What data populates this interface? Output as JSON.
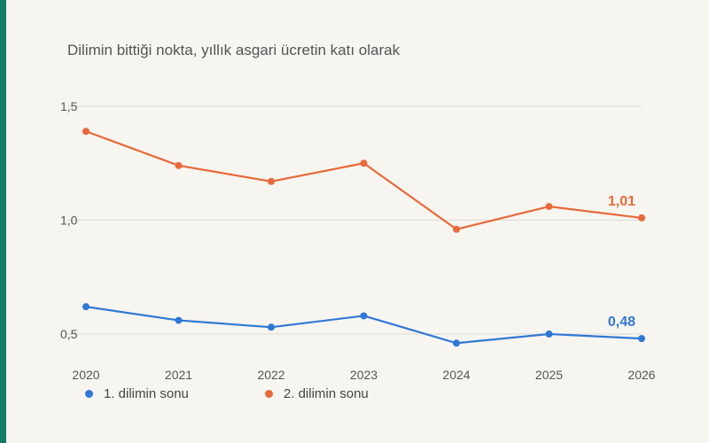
{
  "colors": {
    "background": "#f7f5f0",
    "accent_bar": "#177a66",
    "grid": "#dcdad5",
    "axis_text": "#555555"
  },
  "chart_data": {
    "type": "line",
    "title": "Dilimin bittiği nokta, yıllık asgari ücretin katı olarak",
    "x": [
      "2020",
      "2021",
      "2022",
      "2023",
      "2024",
      "2025",
      "2026"
    ],
    "y_ticks": [
      "1,5",
      "1,0",
      "0,5"
    ],
    "y_tick_values": [
      1.5,
      1.0,
      0.5
    ],
    "ylim": [
      0.45,
      1.55
    ],
    "grid": true,
    "legend_position": "bottom-left",
    "series": [
      {
        "name": "1. dilimin sonu",
        "color": "#2f78d6",
        "values": [
          0.62,
          0.56,
          0.53,
          0.58,
          0.46,
          0.5,
          0.48
        ],
        "end_label": "0,48"
      },
      {
        "name": "2. dilimin sonu",
        "color": "#e8693a",
        "values": [
          1.39,
          1.24,
          1.17,
          1.25,
          0.96,
          1.06,
          1.01
        ],
        "end_label": "1,01"
      }
    ]
  }
}
